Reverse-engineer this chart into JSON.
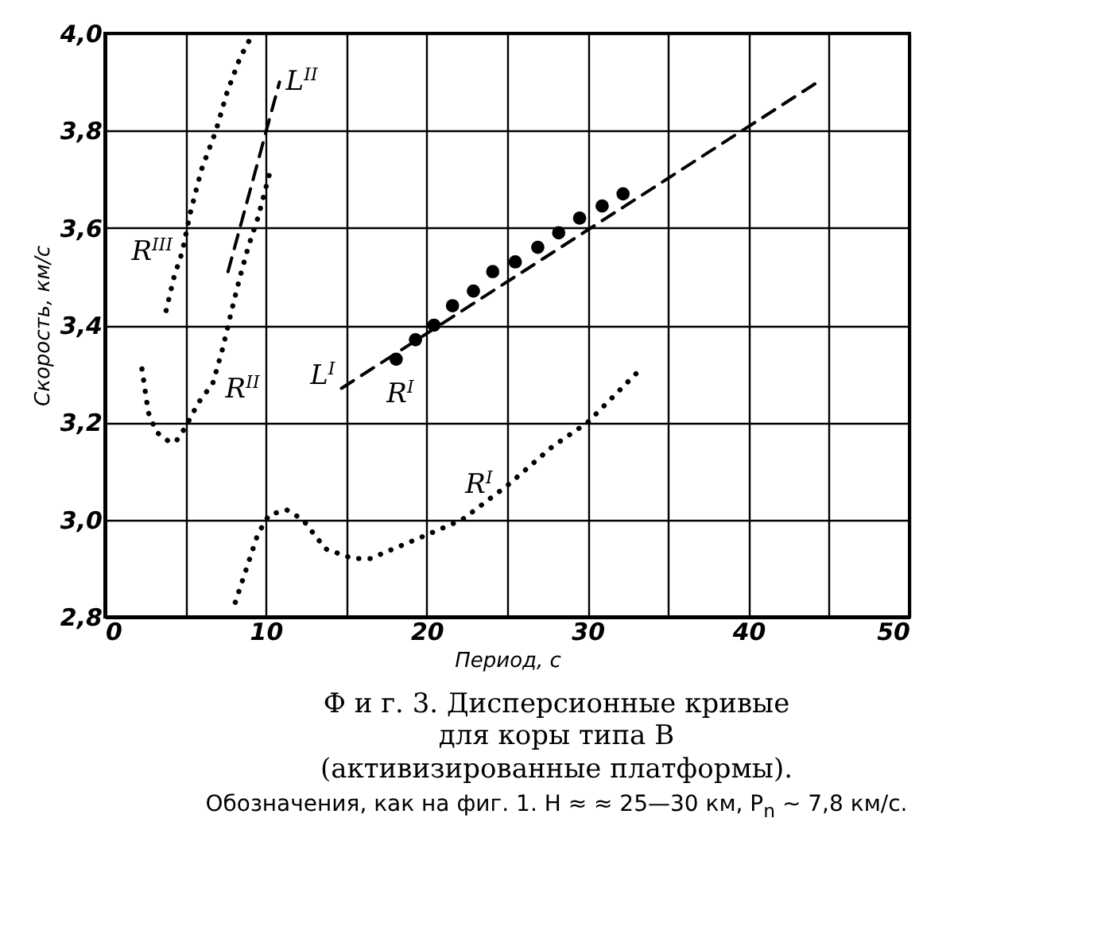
{
  "chart_data": {
    "type": "line",
    "title": "Ф и г. 3. Дисперсионные кривые для коры типа B (активизированные платформы).",
    "xlabel": "Период, с",
    "ylabel": "Скорость, км/с",
    "xlim": [
      0,
      50
    ],
    "ylim": [
      2.8,
      4.0
    ],
    "xticks": [
      0,
      {
        "value": 5,
        "label": null
      },
      10,
      {
        "value": 15,
        "label": null
      },
      20,
      {
        "value": 25,
        "label": null
      },
      30,
      {
        "value": 35,
        "label": null
      },
      40,
      {
        "value": 45,
        "label": null
      },
      50
    ],
    "yticks": [
      {
        "value": 2.8,
        "label": "2,8"
      },
      {
        "value": 3.0,
        "label": "3,0"
      },
      {
        "value": 3.2,
        "label": "3,2"
      },
      {
        "value": 3.4,
        "label": "3,4"
      },
      {
        "value": 3.6,
        "label": "3,6"
      },
      {
        "value": 3.8,
        "label": "3,8"
      },
      {
        "value": 4.0,
        "label": "4,0"
      }
    ],
    "grid": true,
    "series": [
      {
        "name": "R$^{III}$",
        "line_style": "dotted",
        "color": "#000000",
        "x": [
          3.8,
          4.3,
          4.8,
          5.3,
          6.0,
          6.9,
          7.6,
          8.4,
          9.2
        ],
        "values": [
          3.43,
          3.5,
          3.55,
          3.63,
          3.72,
          3.8,
          3.88,
          3.95,
          4.0
        ]
      },
      {
        "name": "R$^{II}$",
        "line_style": "dotted",
        "color": "#000000",
        "x": [
          2.3,
          2.7,
          3.2,
          4.0,
          4.4,
          5.0,
          5.8,
          6.7,
          7.3,
          7.8,
          8.4,
          8.9,
          9.5,
          10.3
        ],
        "values": [
          3.31,
          3.22,
          3.18,
          3.16,
          3.16,
          3.19,
          3.24,
          3.28,
          3.35,
          3.42,
          3.5,
          3.56,
          3.62,
          3.72
        ]
      },
      {
        "name": "L$^{II}$",
        "line_style": "dashed",
        "color": "#000000",
        "x": [
          7.65,
          10.85
        ],
        "values": [
          3.51,
          3.9
        ]
      },
      {
        "name": "R$^{I}$",
        "line_style": "dotted",
        "color": "#000000",
        "x": [
          8.1,
          9.5,
          10.2,
          11.3,
          12.3,
          13.7,
          15.4,
          16.5,
          20.1,
          22.2,
          25.0,
          27.8,
          30.0,
          33.3
        ],
        "values": [
          2.83,
          2.97,
          3.01,
          3.02,
          3.0,
          2.94,
          2.92,
          2.92,
          2.97,
          3.0,
          3.07,
          3.15,
          3.2,
          3.31
        ]
      },
      {
        "name": "L$^{I}$",
        "line_style": "dashed",
        "color": "#000000",
        "x": [
          14.7,
          44.3
        ],
        "values": [
          3.27,
          3.9
        ]
      },
      {
        "name": "R$^{I}$",
        "type": "scatter",
        "marker": "circle",
        "color": "#000000",
        "x": [
          18.1,
          19.3,
          20.45,
          21.6,
          22.9,
          24.1,
          25.5,
          26.9,
          28.2,
          29.5,
          30.9,
          32.2
        ],
        "values": [
          3.33,
          3.37,
          3.4,
          3.44,
          3.47,
          3.51,
          3.53,
          3.56,
          3.59,
          3.62,
          3.645,
          3.67
        ]
      }
    ],
    "annotations": [
      "Обозначения, как на фиг. 1. H ≈ ≈ 25—30 км, P$_{n}$ ~ 7,8 км/с."
    ]
  }
}
